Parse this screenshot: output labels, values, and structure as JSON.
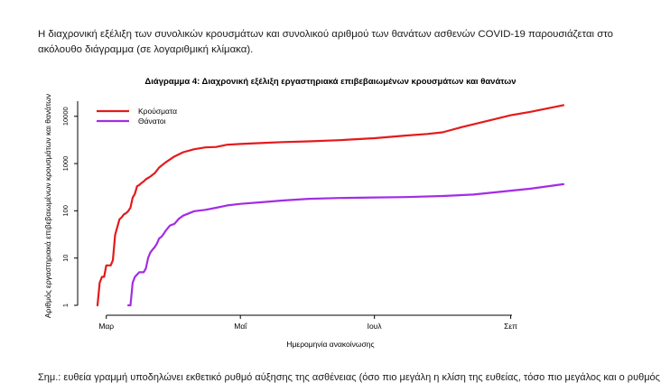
{
  "intro_text": "Η διαχρονική εξέλιξη των συνολικών κρουσμάτων και συνολικού αριθμού των θανάτων ασθενών COVID-19 παρουσιάζεται στο ακόλουθο διάγραμμα (σε λογαριθμική κλίμακα).",
  "note_text": "Σημ.: ευθεία γραμμή υποδηλώνει εκθετικό ρυθμό αύξησης της ασθένειας (όσο πιο μεγάλη η κλίση της ευθείας, τόσο πιο μεγάλος και ο ρυθμός",
  "chart_data": {
    "type": "line",
    "title": "Διάγραμμα 4: Διαχρονική εξέλιξη εργαστηριακά επιβεβαιωμένων κρουσμάτων και θανάτων",
    "xlabel": "Ημερομηνία ανακοίνωσης",
    "ylabel": "Αριθμός εργαστηριακά επιβεβαιωμένων κρουσμάτων και θανάτων",
    "y_scale": "log",
    "ylim": [
      1,
      20000
    ],
    "xlim": [
      "2020-02-26",
      "2020-09-25"
    ],
    "y_ticks": [
      {
        "value": 1,
        "label": "1"
      },
      {
        "value": 10,
        "label": "10"
      },
      {
        "value": 100,
        "label": "100"
      },
      {
        "value": 1000,
        "label": "1000"
      },
      {
        "value": 10000,
        "label": "10000"
      }
    ],
    "x_ticks": [
      {
        "date": "2020-03-01",
        "label": "Μαρ"
      },
      {
        "date": "2020-05-01",
        "label": "Μαΐ"
      },
      {
        "date": "2020-07-01",
        "label": "Ιουλ"
      },
      {
        "date": "2020-09-01",
        "label": "Σεπ"
      }
    ],
    "grid": false,
    "legend_position": "top-left",
    "series": [
      {
        "name": "Κρούσματα",
        "color": "#e41a1c",
        "points": [
          [
            "2020-02-26",
            1
          ],
          [
            "2020-02-27",
            3
          ],
          [
            "2020-02-28",
            4
          ],
          [
            "2020-02-29",
            4
          ],
          [
            "2020-03-01",
            7
          ],
          [
            "2020-03-03",
            7
          ],
          [
            "2020-03-04",
            9
          ],
          [
            "2020-03-05",
            31
          ],
          [
            "2020-03-06",
            45
          ],
          [
            "2020-03-07",
            66
          ],
          [
            "2020-03-08",
            73
          ],
          [
            "2020-03-09",
            84
          ],
          [
            "2020-03-10",
            89
          ],
          [
            "2020-03-11",
            99
          ],
          [
            "2020-03-12",
            117
          ],
          [
            "2020-03-13",
            190
          ],
          [
            "2020-03-14",
            228
          ],
          [
            "2020-03-15",
            331
          ],
          [
            "2020-03-16",
            352
          ],
          [
            "2020-03-17",
            387
          ],
          [
            "2020-03-18",
            418
          ],
          [
            "2020-03-19",
            464
          ],
          [
            "2020-03-20",
            495
          ],
          [
            "2020-03-21",
            530
          ],
          [
            "2020-03-23",
            624
          ],
          [
            "2020-03-25",
            821
          ],
          [
            "2020-03-28",
            1061
          ],
          [
            "2020-04-01",
            1415
          ],
          [
            "2020-04-05",
            1735
          ],
          [
            "2020-04-10",
            2011
          ],
          [
            "2020-04-15",
            2192
          ],
          [
            "2020-04-20",
            2245
          ],
          [
            "2020-04-25",
            2506
          ],
          [
            "2020-05-01",
            2591
          ],
          [
            "2020-05-10",
            2710
          ],
          [
            "2020-05-20",
            2840
          ],
          [
            "2020-06-01",
            2952
          ],
          [
            "2020-06-15",
            3121
          ],
          [
            "2020-07-01",
            3432
          ],
          [
            "2020-07-15",
            3910
          ],
          [
            "2020-07-25",
            4227
          ],
          [
            "2020-08-01",
            4587
          ],
          [
            "2020-08-10",
            5942
          ],
          [
            "2020-08-20",
            7684
          ],
          [
            "2020-09-01",
            10524
          ],
          [
            "2020-09-10",
            12452
          ],
          [
            "2020-09-25",
            17228
          ]
        ]
      },
      {
        "name": "Θάνατοι",
        "color": "#a22de6",
        "points": [
          [
            "2020-03-11",
            1
          ],
          [
            "2020-03-12",
            1
          ],
          [
            "2020-03-13",
            3
          ],
          [
            "2020-03-14",
            4
          ],
          [
            "2020-03-16",
            5
          ],
          [
            "2020-03-18",
            5
          ],
          [
            "2020-03-19",
            6
          ],
          [
            "2020-03-20",
            10
          ],
          [
            "2020-03-21",
            13
          ],
          [
            "2020-03-22",
            15
          ],
          [
            "2020-03-23",
            17
          ],
          [
            "2020-03-24",
            20
          ],
          [
            "2020-03-25",
            26
          ],
          [
            "2020-03-26",
            28
          ],
          [
            "2020-03-27",
            32
          ],
          [
            "2020-03-28",
            38
          ],
          [
            "2020-03-30",
            49
          ],
          [
            "2020-04-01",
            53
          ],
          [
            "2020-04-03",
            68
          ],
          [
            "2020-04-05",
            79
          ],
          [
            "2020-04-10",
            98
          ],
          [
            "2020-04-15",
            105
          ],
          [
            "2020-04-20",
            116
          ],
          [
            "2020-04-25",
            130
          ],
          [
            "2020-05-01",
            140
          ],
          [
            "2020-05-10",
            151
          ],
          [
            "2020-05-20",
            165
          ],
          [
            "2020-06-01",
            179
          ],
          [
            "2020-06-15",
            187
          ],
          [
            "2020-07-01",
            192
          ],
          [
            "2020-07-15",
            195
          ],
          [
            "2020-08-01",
            206
          ],
          [
            "2020-08-15",
            221
          ],
          [
            "2020-09-01",
            266
          ],
          [
            "2020-09-10",
            294
          ],
          [
            "2020-09-25",
            366
          ]
        ]
      }
    ]
  }
}
